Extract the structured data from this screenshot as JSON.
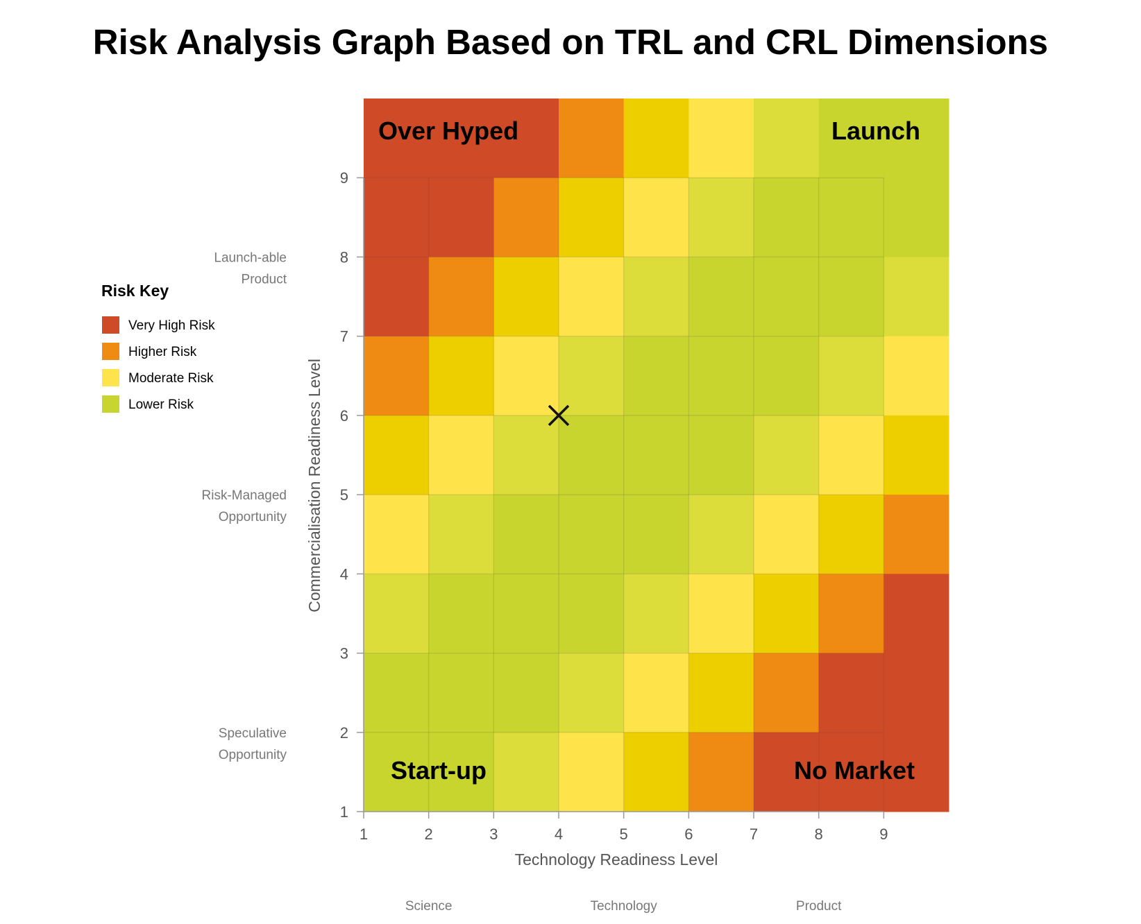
{
  "chart_data": {
    "type": "heatmap",
    "title": "Risk Analysis Graph Based on TRL and CRL Dimensions",
    "xlabel": "Technology Readiness Level",
    "ylabel": "Commercialisation Readiness Level",
    "x_ticks": [
      "1",
      "2",
      "3",
      "4",
      "5",
      "6",
      "7",
      "8",
      "9"
    ],
    "y_ticks": [
      "1",
      "2",
      "3",
      "4",
      "5",
      "6",
      "7",
      "8",
      "9"
    ],
    "xlim": [
      1,
      10
    ],
    "ylim": [
      1,
      10
    ],
    "x_region_labels": [
      "Science",
      "Technology",
      "Product"
    ],
    "y_region_labels": [
      [
        "Speculative",
        "Opportunity"
      ],
      [
        "Risk-Managed",
        "Opportunity"
      ],
      [
        "Launch-able",
        "Product"
      ]
    ],
    "risk_colors": {
      "very_high": "#cf4a26",
      "higher": "#ef8b12",
      "mod_dark": "#edcf00",
      "moderate": "#fee44a",
      "low_light": "#dcdc3a",
      "lower": "#c7d52e"
    },
    "legend_title": "Risk Key",
    "legend": [
      {
        "label": "Very High Risk",
        "color": "#cf4a26"
      },
      {
        "label": "Higher Risk",
        "color": "#ef8b12"
      },
      {
        "label": "Moderate Risk",
        "color": "#fee44a"
      },
      {
        "label": "Lower Risk",
        "color": "#c7d52e"
      }
    ],
    "grid_rows_top_to_bottom": [
      [
        "very_high",
        "very_high",
        "very_high",
        "higher",
        "mod_dark",
        "moderate",
        "low_light",
        "lower",
        "lower"
      ],
      [
        "very_high",
        "very_high",
        "higher",
        "mod_dark",
        "moderate",
        "low_light",
        "lower",
        "lower",
        "lower"
      ],
      [
        "very_high",
        "higher",
        "mod_dark",
        "moderate",
        "low_light",
        "lower",
        "lower",
        "lower",
        "low_light"
      ],
      [
        "higher",
        "mod_dark",
        "moderate",
        "low_light",
        "lower",
        "lower",
        "lower",
        "low_light",
        "moderate"
      ],
      [
        "mod_dark",
        "moderate",
        "low_light",
        "lower",
        "lower",
        "lower",
        "low_light",
        "moderate",
        "mod_dark"
      ],
      [
        "moderate",
        "low_light",
        "lower",
        "lower",
        "lower",
        "low_light",
        "moderate",
        "mod_dark",
        "higher"
      ],
      [
        "low_light",
        "lower",
        "lower",
        "lower",
        "low_light",
        "moderate",
        "mod_dark",
        "higher",
        "very_high"
      ],
      [
        "lower",
        "lower",
        "lower",
        "low_light",
        "moderate",
        "mod_dark",
        "higher",
        "very_high",
        "very_high"
      ],
      [
        "lower",
        "lower",
        "low_light",
        "moderate",
        "mod_dark",
        "higher",
        "very_high",
        "very_high",
        "very_high"
      ]
    ],
    "quadrant_labels": [
      {
        "text": "Over Hyped",
        "corner": "top-left"
      },
      {
        "text": "Launch",
        "corner": "top-right"
      },
      {
        "text": "Start-up",
        "corner": "bottom-left"
      },
      {
        "text": "No Market",
        "corner": "bottom-right"
      }
    ],
    "marker": {
      "x": 4,
      "y": 6,
      "symbol": "×"
    }
  }
}
